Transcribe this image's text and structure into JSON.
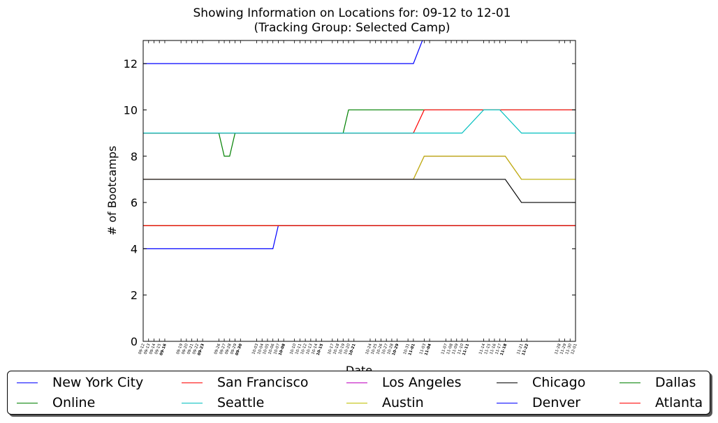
{
  "chart_data": {
    "type": "line",
    "title": "Showing Information on Locations for: 09-12 to 12-01",
    "subtitle": "(Tracking Group: Selected Camp)",
    "xlabel": "Date",
    "ylabel": "# of Bootcamps",
    "ylim": [
      0,
      13
    ],
    "yticks": [
      "0",
      "2",
      "4",
      "6",
      "8",
      "10",
      "12"
    ],
    "grid": false,
    "legend_position": "bottom",
    "x_start": "09-12",
    "x_end": "12-01",
    "xticks": [
      {
        "day": 0,
        "label": "09-12",
        "bold": false
      },
      {
        "day": 1,
        "label": "09-13",
        "bold": false
      },
      {
        "day": 2,
        "label": "09-14",
        "bold": false
      },
      {
        "day": 3,
        "label": "09-15",
        "bold": false
      },
      {
        "day": 4,
        "label": "09-16",
        "bold": true
      },
      {
        "day": 7,
        "label": "09-19",
        "bold": false
      },
      {
        "day": 8,
        "label": "09-20",
        "bold": false
      },
      {
        "day": 9,
        "label": "09-21",
        "bold": false
      },
      {
        "day": 10,
        "label": "09-22",
        "bold": false
      },
      {
        "day": 11,
        "label": "09-23",
        "bold": true
      },
      {
        "day": 14,
        "label": "09-26",
        "bold": false
      },
      {
        "day": 15,
        "label": "09-27",
        "bold": false
      },
      {
        "day": 16,
        "label": "09-28",
        "bold": false
      },
      {
        "day": 17,
        "label": "09-29",
        "bold": false
      },
      {
        "day": 18,
        "label": "09-30",
        "bold": true
      },
      {
        "day": 21,
        "label": "10-03",
        "bold": false
      },
      {
        "day": 22,
        "label": "10-04",
        "bold": false
      },
      {
        "day": 23,
        "label": "10-05",
        "bold": false
      },
      {
        "day": 24,
        "label": "10-06",
        "bold": false
      },
      {
        "day": 25,
        "label": "10-07",
        "bold": false
      },
      {
        "day": 26,
        "label": "10-08",
        "bold": true
      },
      {
        "day": 28,
        "label": "10-10",
        "bold": false
      },
      {
        "day": 29,
        "label": "10-11",
        "bold": false
      },
      {
        "day": 30,
        "label": "10-12",
        "bold": false
      },
      {
        "day": 31,
        "label": "10-13",
        "bold": false
      },
      {
        "day": 32,
        "label": "10-14",
        "bold": false
      },
      {
        "day": 33,
        "label": "10-15",
        "bold": true
      },
      {
        "day": 35,
        "label": "10-17",
        "bold": false
      },
      {
        "day": 36,
        "label": "10-18",
        "bold": false
      },
      {
        "day": 37,
        "label": "10-19",
        "bold": false
      },
      {
        "day": 38,
        "label": "10-20",
        "bold": false
      },
      {
        "day": 39,
        "label": "10-21",
        "bold": true
      },
      {
        "day": 42,
        "label": "10-24",
        "bold": false
      },
      {
        "day": 43,
        "label": "10-25",
        "bold": false
      },
      {
        "day": 44,
        "label": "10-26",
        "bold": false
      },
      {
        "day": 45,
        "label": "10-27",
        "bold": false
      },
      {
        "day": 46,
        "label": "10-28",
        "bold": false
      },
      {
        "day": 47,
        "label": "10-29",
        "bold": true
      },
      {
        "day": 49,
        "label": "10-31",
        "bold": false
      },
      {
        "day": 50,
        "label": "11-01",
        "bold": true
      },
      {
        "day": 52,
        "label": "11-03",
        "bold": false
      },
      {
        "day": 53,
        "label": "11-04",
        "bold": true
      },
      {
        "day": 56,
        "label": "11-07",
        "bold": false
      },
      {
        "day": 57,
        "label": "11-08",
        "bold": false
      },
      {
        "day": 58,
        "label": "11-09",
        "bold": false
      },
      {
        "day": 59,
        "label": "11-10",
        "bold": false
      },
      {
        "day": 60,
        "label": "11-11",
        "bold": true
      },
      {
        "day": 63,
        "label": "11-14",
        "bold": false
      },
      {
        "day": 64,
        "label": "11-15",
        "bold": false
      },
      {
        "day": 65,
        "label": "11-16",
        "bold": false
      },
      {
        "day": 66,
        "label": "11-17",
        "bold": false
      },
      {
        "day": 67,
        "label": "11-18",
        "bold": true
      },
      {
        "day": 70,
        "label": "11-21",
        "bold": false
      },
      {
        "day": 71,
        "label": "11-22",
        "bold": true
      },
      {
        "day": 77,
        "label": "11-28",
        "bold": false
      },
      {
        "day": 78,
        "label": "11-29",
        "bold": false
      },
      {
        "day": 79,
        "label": "11-30",
        "bold": false
      },
      {
        "day": 80,
        "label": "12-01",
        "bold": false
      }
    ],
    "series": [
      {
        "name": "New York City",
        "color": "#0000ff",
        "x": [
          "09-12",
          "11-01",
          "11-03",
          "12-01"
        ],
        "y": [
          12,
          12,
          13.2,
          13.2
        ]
      },
      {
        "name": "Online",
        "color": "#008000",
        "x": [
          "09-12",
          "09-26",
          "09-27",
          "09-28",
          "09-29",
          "10-19",
          "10-20",
          "12-01"
        ],
        "y": [
          9,
          9,
          8,
          8,
          9,
          9,
          10,
          10
        ]
      },
      {
        "name": "San Francisco",
        "color": "#ff0000",
        "x": [
          "09-12",
          "11-01",
          "11-03",
          "12-01"
        ],
        "y": [
          9,
          9,
          10,
          10
        ]
      },
      {
        "name": "Seattle",
        "color": "#00bfbf",
        "x": [
          "09-12",
          "11-10",
          "11-14",
          "11-17",
          "11-21",
          "12-01"
        ],
        "y": [
          9,
          9,
          10,
          10,
          9,
          9
        ]
      },
      {
        "name": "Los Angeles",
        "color": "#bf00bf",
        "x": [
          "09-12",
          "11-01",
          "11-03",
          "11-18",
          "11-21",
          "12-01"
        ],
        "y": [
          7,
          7,
          8,
          8,
          7,
          7
        ]
      },
      {
        "name": "Austin",
        "color": "#bfbf00",
        "x": [
          "09-12",
          "11-01",
          "11-03",
          "11-18",
          "11-21",
          "12-01"
        ],
        "y": [
          7,
          7,
          8,
          8,
          7,
          7
        ]
      },
      {
        "name": "Chicago",
        "color": "#000000",
        "x": [
          "09-12",
          "11-18",
          "11-21",
          "12-01"
        ],
        "y": [
          7,
          7,
          6,
          6
        ]
      },
      {
        "name": "Denver",
        "color": "#0000ff",
        "x": [
          "09-12",
          "10-06",
          "10-07",
          "12-01"
        ],
        "y": [
          4,
          4,
          5,
          5
        ]
      },
      {
        "name": "Dallas",
        "color": "#008000",
        "x": [
          "09-12",
          "12-01"
        ],
        "y": [
          5,
          5
        ]
      },
      {
        "name": "Atlanta",
        "color": "#ff0000",
        "x": [
          "09-12",
          "12-01"
        ],
        "y": [
          5,
          5
        ]
      }
    ]
  }
}
